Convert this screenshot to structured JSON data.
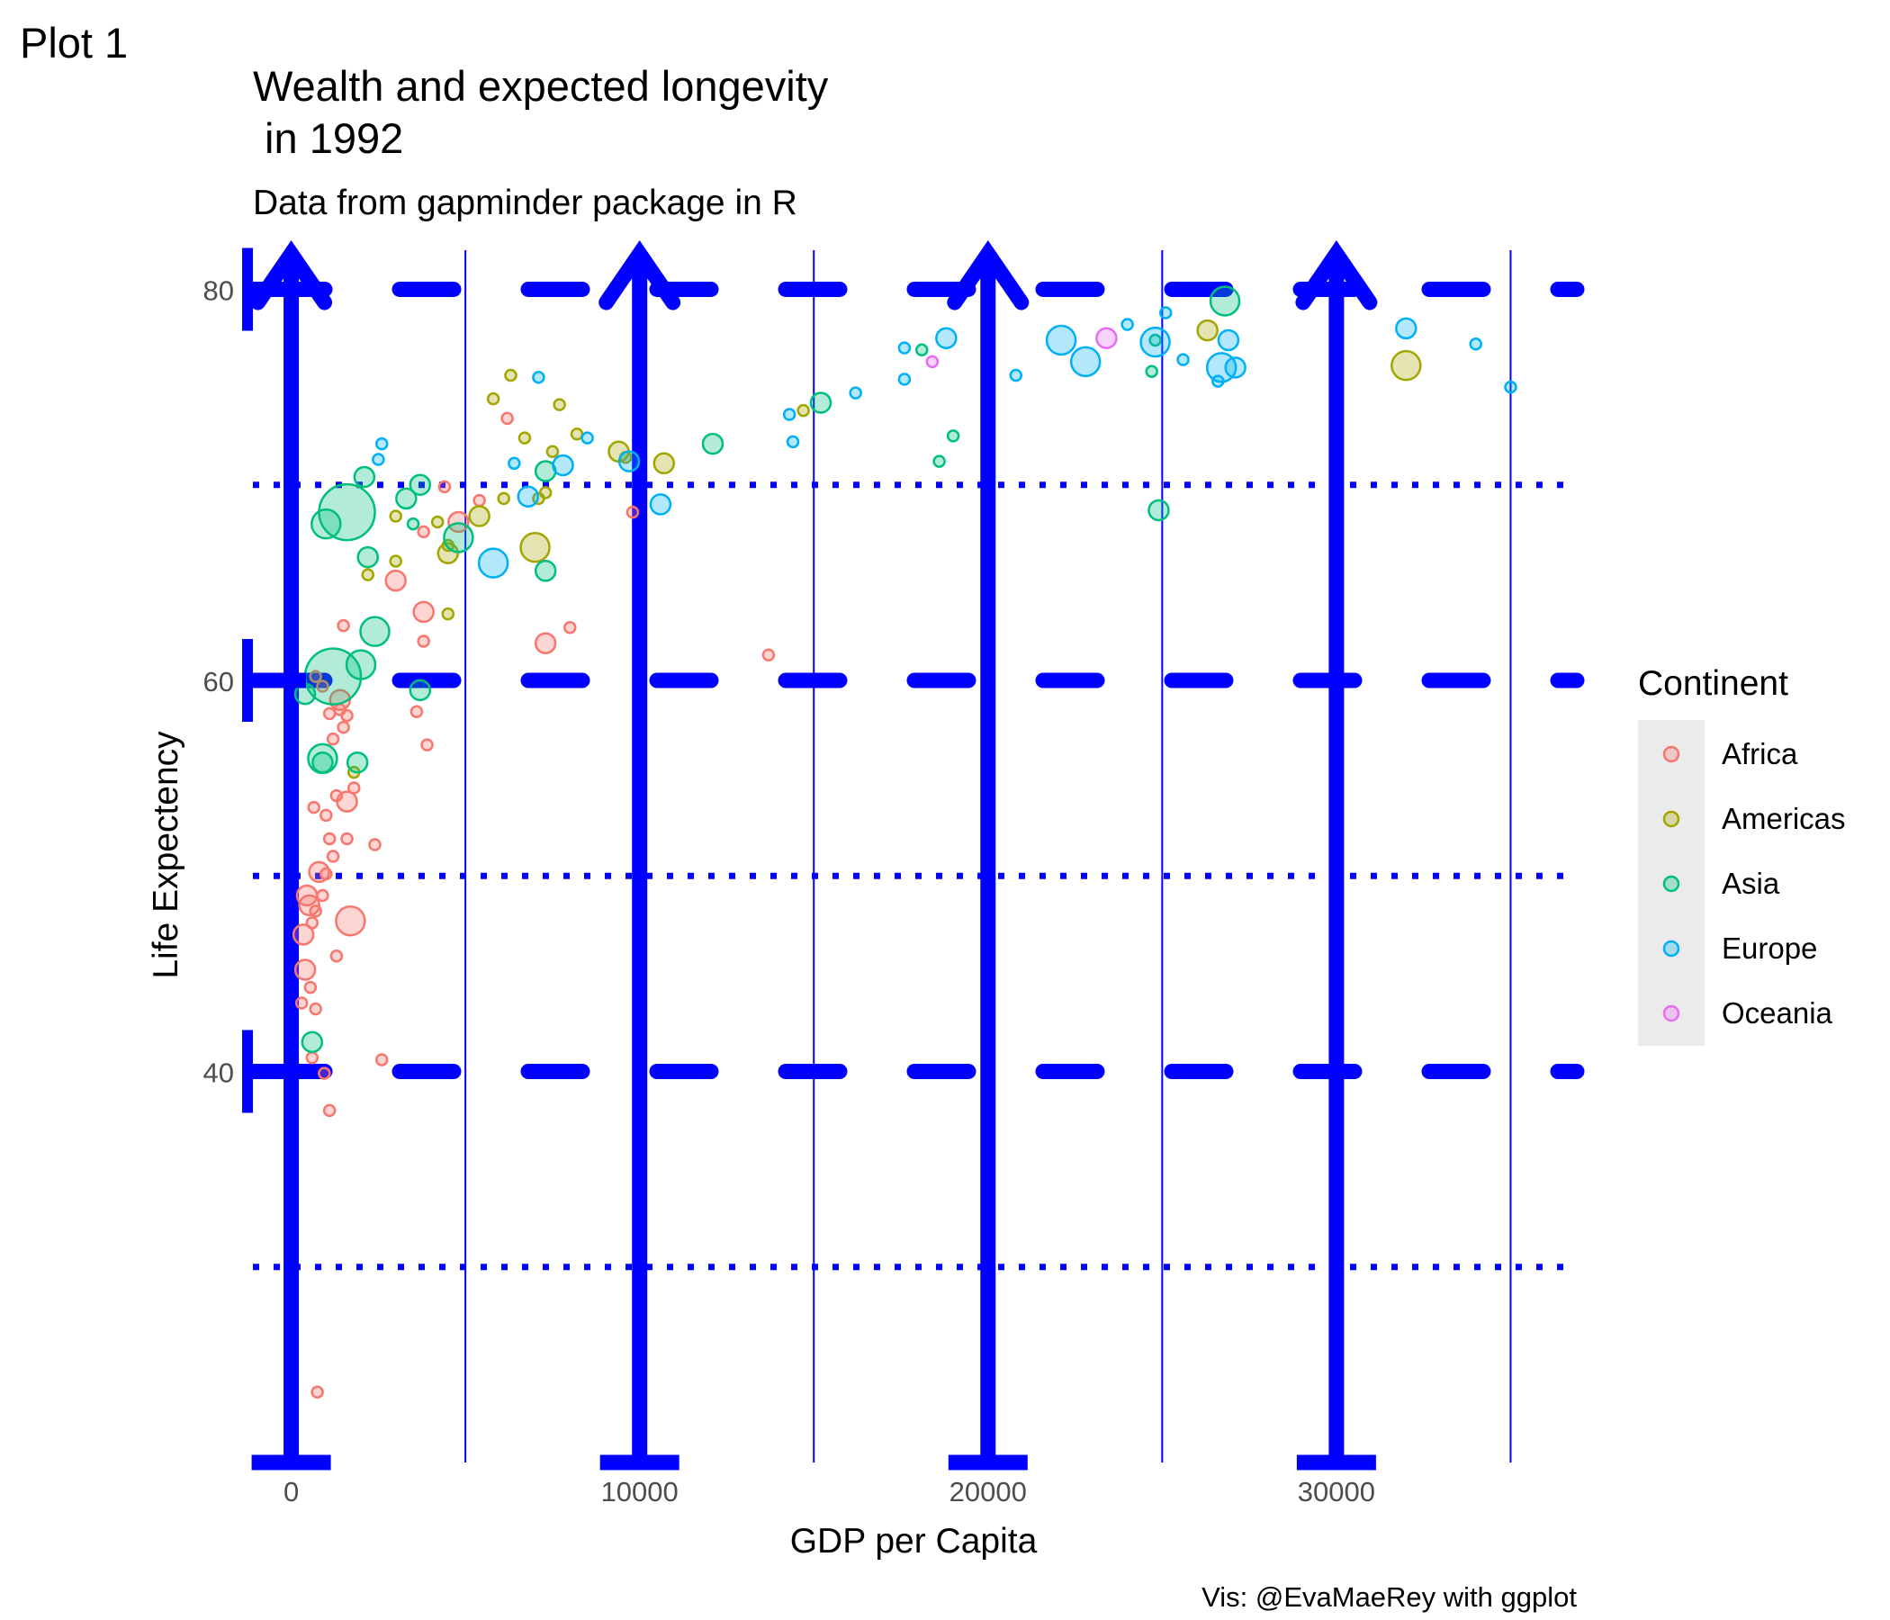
{
  "tag": "Plot 1",
  "chart_data": {
    "type": "scatter",
    "title_line1": "Wealth and expected longevity",
    "title_line2": " in 1992",
    "subtitle": "Data from gapminder package in R",
    "xlabel": "GDP per Capita",
    "ylabel": "Life Expectency",
    "caption": "Vis: @EvaMaeRey with ggplot",
    "xlim": [
      -1100,
      36900
    ],
    "ylim": [
      20,
      82
    ],
    "x_ticks": [
      0,
      10000,
      20000,
      30000
    ],
    "x_tick_labels": [
      "0",
      "10000",
      "20000",
      "30000"
    ],
    "y_ticks": [
      40,
      60,
      80
    ],
    "y_tick_labels": [
      "40",
      "60",
      "80"
    ],
    "legend": {
      "title": "Continent",
      "position": "right",
      "entries": [
        {
          "name": "Africa",
          "color": "#F8766D"
        },
        {
          "name": "Americas",
          "color": "#A3A500"
        },
        {
          "name": "Asia",
          "color": "#00BF7D"
        },
        {
          "name": "Europe",
          "color": "#00B0F6"
        },
        {
          "name": "Oceania",
          "color": "#E76BF3"
        }
      ]
    },
    "guide_color": "#0000FF",
    "grid": {
      "major_y_style": "dashed-thick",
      "minor_y_style": "dotted",
      "major_x_style": "arrow-thick",
      "minor_x_style": "thin"
    },
    "series": [
      {
        "name": "Africa",
        "color": "#F8766D",
        "points": [
          [
            750,
            23.6,
            1
          ],
          [
            350,
            47.0,
            2
          ],
          [
            450,
            49.0,
            2
          ],
          [
            520,
            48.5,
            2
          ],
          [
            600,
            47.6,
            1
          ],
          [
            700,
            48.2,
            1
          ],
          [
            800,
            50.2,
            2
          ],
          [
            900,
            49.0,
            1
          ],
          [
            1000,
            50.1,
            1
          ],
          [
            1100,
            51.9,
            1
          ],
          [
            1200,
            51.0,
            1
          ],
          [
            1600,
            51.9,
            1
          ],
          [
            1700,
            47.7,
            3
          ],
          [
            1300,
            45.9,
            1
          ],
          [
            400,
            45.2,
            2
          ],
          [
            550,
            44.3,
            1
          ],
          [
            300,
            43.5,
            1
          ],
          [
            700,
            43.2,
            1
          ],
          [
            600,
            40.7,
            1
          ],
          [
            950,
            39.9,
            1
          ],
          [
            1100,
            38.0,
            1
          ],
          [
            2600,
            40.6,
            1
          ],
          [
            650,
            53.5,
            1
          ],
          [
            1300,
            54.1,
            1
          ],
          [
            1600,
            53.8,
            2
          ],
          [
            1800,
            54.5,
            1
          ],
          [
            1000,
            53.1,
            1
          ],
          [
            1200,
            57.0,
            1
          ],
          [
            1500,
            57.6,
            1
          ],
          [
            1100,
            58.3,
            1
          ],
          [
            1400,
            58.5,
            1
          ],
          [
            1600,
            58.2,
            1
          ],
          [
            900,
            59.7,
            1
          ],
          [
            700,
            60.2,
            1
          ],
          [
            1400,
            59.0,
            2
          ],
          [
            2400,
            51.6,
            1
          ],
          [
            3900,
            56.7,
            1
          ],
          [
            3600,
            58.4,
            1
          ],
          [
            3800,
            62.0,
            1
          ],
          [
            3800,
            63.5,
            2
          ],
          [
            1500,
            62.8,
            1
          ],
          [
            3000,
            65.1,
            2
          ],
          [
            3800,
            67.6,
            1
          ],
          [
            4800,
            68.1,
            2
          ],
          [
            5400,
            69.2,
            1
          ],
          [
            4400,
            69.9,
            1
          ],
          [
            6200,
            73.4,
            1
          ],
          [
            7300,
            61.9,
            2
          ],
          [
            8000,
            62.7,
            1
          ],
          [
            9800,
            68.6,
            1
          ],
          [
            13700,
            61.3,
            1
          ]
        ]
      },
      {
        "name": "Americas",
        "color": "#A3A500",
        "points": [
          [
            2200,
            65.4,
            1
          ],
          [
            3000,
            66.1,
            1
          ],
          [
            4500,
            66.5,
            2
          ],
          [
            4500,
            66.9,
            1
          ],
          [
            3000,
            68.4,
            1
          ],
          [
            4200,
            68.1,
            1
          ],
          [
            5400,
            68.4,
            2
          ],
          [
            4500,
            63.4,
            1
          ],
          [
            6100,
            69.3,
            1
          ],
          [
            7000,
            66.8,
            3
          ],
          [
            7100,
            69.3,
            1
          ],
          [
            7300,
            69.6,
            1
          ],
          [
            5800,
            74.4,
            1
          ],
          [
            6300,
            75.6,
            1
          ],
          [
            6700,
            72.4,
            1
          ],
          [
            7500,
            71.7,
            1
          ],
          [
            7700,
            74.1,
            1
          ],
          [
            8200,
            72.6,
            1
          ],
          [
            9400,
            71.7,
            2
          ],
          [
            9600,
            71.4,
            1
          ],
          [
            10700,
            71.1,
            2
          ],
          [
            14700,
            73.8,
            1
          ],
          [
            26300,
            77.9,
            2
          ],
          [
            32000,
            76.1,
            3
          ],
          [
            1800,
            55.3,
            1
          ]
        ]
      },
      {
        "name": "Asia",
        "color": "#00BF7D",
        "points": [
          [
            1600,
            68.6,
            6
          ],
          [
            1000,
            68.0,
            3
          ],
          [
            2100,
            70.4,
            2
          ],
          [
            2200,
            66.3,
            2
          ],
          [
            2400,
            62.5,
            3
          ],
          [
            1200,
            60.2,
            6
          ],
          [
            2000,
            60.8,
            3
          ],
          [
            3300,
            69.3,
            2
          ],
          [
            3700,
            70.0,
            2
          ],
          [
            4800,
            67.3,
            3
          ],
          [
            3500,
            68.0,
            1
          ],
          [
            7300,
            65.6,
            2
          ],
          [
            7300,
            70.7,
            2
          ],
          [
            12100,
            72.1,
            2
          ],
          [
            15200,
            74.2,
            2
          ],
          [
            18600,
            71.2,
            1
          ],
          [
            19000,
            72.5,
            1
          ],
          [
            18100,
            76.9,
            1
          ],
          [
            24700,
            75.8,
            1
          ],
          [
            24800,
            77.4,
            1
          ],
          [
            26800,
            79.4,
            3
          ],
          [
            24900,
            68.7,
            2
          ],
          [
            3700,
            59.5,
            2
          ],
          [
            900,
            56.0,
            3
          ],
          [
            900,
            55.8,
            2
          ],
          [
            1900,
            55.8,
            2
          ],
          [
            600,
            41.5,
            2
          ],
          [
            400,
            59.3,
            2
          ]
        ]
      },
      {
        "name": "Europe",
        "color": "#00B0F6",
        "points": [
          [
            2500,
            71.3,
            1
          ],
          [
            2600,
            72.1,
            1
          ],
          [
            6400,
            71.1,
            1
          ],
          [
            7100,
            75.5,
            1
          ],
          [
            7800,
            71.0,
            2
          ],
          [
            8500,
            72.4,
            1
          ],
          [
            6800,
            69.4,
            2
          ],
          [
            9700,
            71.2,
            2
          ],
          [
            10600,
            69.0,
            2
          ],
          [
            5800,
            66.0,
            3
          ],
          [
            14400,
            72.2,
            1
          ],
          [
            14300,
            73.6,
            1
          ],
          [
            16200,
            74.7,
            1
          ],
          [
            17600,
            77.0,
            1
          ],
          [
            17600,
            75.4,
            1
          ],
          [
            18800,
            77.5,
            2
          ],
          [
            20800,
            75.6,
            1
          ],
          [
            22100,
            77.4,
            3
          ],
          [
            22800,
            76.3,
            3
          ],
          [
            24000,
            78.2,
            1
          ],
          [
            24800,
            77.3,
            3
          ],
          [
            25100,
            78.8,
            1
          ],
          [
            25600,
            76.4,
            1
          ],
          [
            26700,
            76.0,
            3
          ],
          [
            26600,
            75.3,
            1
          ],
          [
            26900,
            77.4,
            2
          ],
          [
            27100,
            76.0,
            2
          ],
          [
            32000,
            78.0,
            2
          ],
          [
            34000,
            77.2,
            1
          ],
          [
            35000,
            75.0,
            1
          ]
        ]
      },
      {
        "name": "Oceania",
        "color": "#E76BF3",
        "points": [
          [
            18400,
            76.3,
            1
          ],
          [
            23400,
            77.5,
            2
          ]
        ]
      }
    ]
  }
}
